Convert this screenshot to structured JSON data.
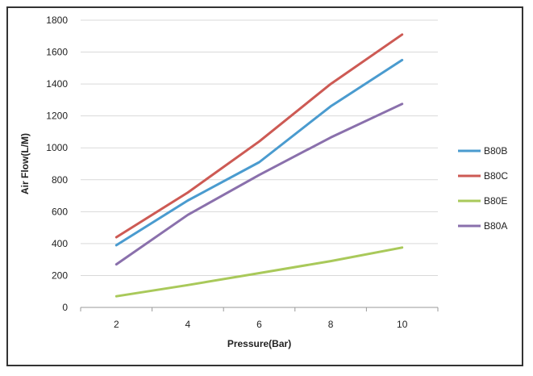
{
  "chart_data": {
    "type": "line",
    "title": "",
    "xlabel": "Pressure(Bar)",
    "ylabel": "Air Flow(L/M)",
    "x": [
      2,
      4,
      6,
      8,
      10
    ],
    "xlim": [
      1,
      11
    ],
    "ylim": [
      0,
      1800
    ],
    "xticks": [
      "2",
      "4",
      "6",
      "8",
      "10"
    ],
    "yticks": [
      "0",
      "200",
      "400",
      "600",
      "800",
      "1000",
      "1200",
      "1400",
      "1600",
      "1800"
    ],
    "ytick_values": [
      0,
      200,
      400,
      600,
      800,
      1000,
      1200,
      1400,
      1600,
      1800
    ],
    "grid": "horizontal",
    "legend_position": "right",
    "series": [
      {
        "name": "B80B",
        "color": "#4a9bcf",
        "values": [
          390,
          670,
          910,
          1260,
          1550
        ]
      },
      {
        "name": "B80C",
        "color": "#cd5a54",
        "values": [
          440,
          720,
          1040,
          1400,
          1710
        ]
      },
      {
        "name": "B80E",
        "color": "#a9c95a",
        "values": [
          70,
          140,
          215,
          290,
          375
        ]
      },
      {
        "name": "B80A",
        "color": "#8a70ac",
        "values": [
          270,
          580,
          830,
          1065,
          1275
        ]
      }
    ]
  }
}
